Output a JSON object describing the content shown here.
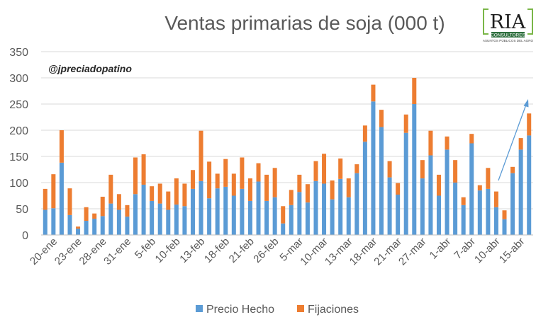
{
  "chart_data": {
    "type": "bar",
    "stacked": true,
    "title": "Ventas primarias de soja (000 t)",
    "annotation": "@jpreciadopatino",
    "xlabel": "",
    "ylabel": "",
    "ylim": [
      0,
      350
    ],
    "yticks": [
      0,
      50,
      100,
      150,
      200,
      250,
      300,
      350
    ],
    "grid": true,
    "legend_position": "bottom",
    "x_tick_labels": [
      "20-ene",
      "23-ene",
      "28-ene",
      "31-ene",
      "5-feb",
      "10-feb",
      "13-feb",
      "18-feb",
      "21-feb",
      "26-feb",
      "5-mar",
      "10-mar",
      "13-mar",
      "18-mar",
      "21-mar",
      "27-mar",
      "1-abr",
      "7-abr",
      "10-abr",
      "15-abr"
    ],
    "series": [
      {
        "name": "Precio Hecho",
        "color": "#5B9BD5",
        "values": [
          48,
          51,
          138,
          38,
          12,
          27,
          31,
          36,
          60,
          48,
          35,
          78,
          96,
          65,
          60,
          48,
          58,
          55,
          88,
          103,
          70,
          89,
          92,
          75,
          88,
          65,
          102,
          65,
          72,
          22,
          57,
          82,
          62,
          103,
          98,
          68,
          107,
          72,
          118,
          178,
          255,
          206,
          110,
          77,
          195,
          250,
          108,
          152,
          75,
          163,
          100,
          57,
          175,
          85,
          88,
          53,
          30,
          118,
          163,
          190
        ]
      },
      {
        "name": "Fijaciones",
        "color": "#ED7D31",
        "values": [
          40,
          65,
          62,
          51,
          4,
          26,
          10,
          37,
          55,
          30,
          22,
          70,
          58,
          28,
          38,
          35,
          50,
          43,
          36,
          96,
          70,
          28,
          53,
          42,
          60,
          43,
          35,
          50,
          56,
          33,
          29,
          33,
          35,
          38,
          57,
          36,
          39,
          36,
          17,
          31,
          32,
          33,
          31,
          22,
          35,
          50,
          35,
          47,
          40,
          25,
          43,
          15,
          18,
          10,
          40,
          30,
          17,
          12,
          22,
          42
        ]
      }
    ]
  },
  "logo": {
    "name": "RIA",
    "band_text": "CONSULTORES",
    "subtitle": "ASUNTOS PÚBLICOS DEL AGRO"
  }
}
